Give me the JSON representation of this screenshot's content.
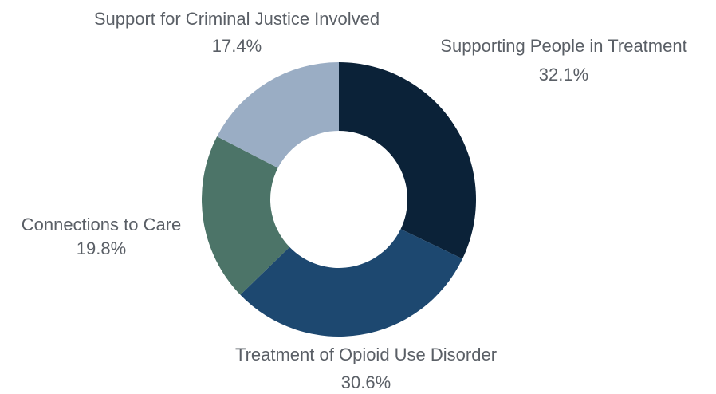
{
  "chart_data": {
    "type": "pie",
    "donut": true,
    "categories": [
      "Supporting People in Treatment",
      "Treatment of Opioid Use Disorder",
      "Connections to Care",
      "Support for Criminal Justice Involved"
    ],
    "values": [
      32.1,
      30.6,
      19.8,
      17.4
    ],
    "value_labels": [
      "32.1%",
      "30.6%",
      "19.8%",
      "17.4%"
    ],
    "colors": [
      "#0b2238",
      "#1d4870",
      "#4c7468",
      "#9aadc4"
    ],
    "title": "",
    "legend": "none"
  }
}
